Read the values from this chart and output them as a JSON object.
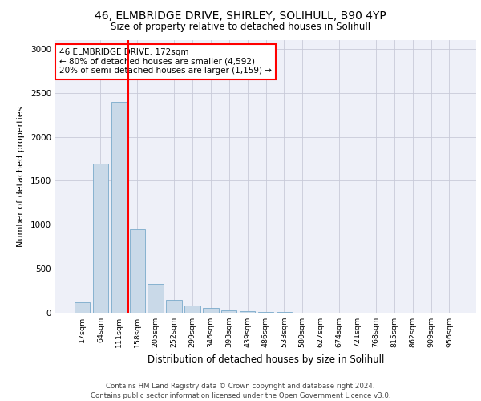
{
  "title_line1": "46, ELMBRIDGE DRIVE, SHIRLEY, SOLIHULL, B90 4YP",
  "title_line2": "Size of property relative to detached houses in Solihull",
  "xlabel": "Distribution of detached houses by size in Solihull",
  "ylabel": "Number of detached properties",
  "footer_line1": "Contains HM Land Registry data © Crown copyright and database right 2024.",
  "footer_line2": "Contains public sector information licensed under the Open Government Licence v3.0.",
  "categories": [
    "17sqm",
    "64sqm",
    "111sqm",
    "158sqm",
    "205sqm",
    "252sqm",
    "299sqm",
    "346sqm",
    "393sqm",
    "439sqm",
    "486sqm",
    "533sqm",
    "580sqm",
    "627sqm",
    "674sqm",
    "721sqm",
    "768sqm",
    "815sqm",
    "862sqm",
    "909sqm",
    "956sqm"
  ],
  "values": [
    120,
    1700,
    2400,
    950,
    330,
    145,
    85,
    55,
    30,
    20,
    8,
    5,
    3,
    2,
    1,
    1,
    0,
    0,
    0,
    0,
    0
  ],
  "bar_color": "#c9d9e8",
  "bar_edge_color": "#7aaacb",
  "red_line_x": 2.5,
  "annotation_text": "46 ELMBRIDGE DRIVE: 172sqm\n← 80% of detached houses are smaller (4,592)\n20% of semi-detached houses are larger (1,159) →",
  "ylim": [
    0,
    3100
  ],
  "yticks": [
    0,
    500,
    1000,
    1500,
    2000,
    2500,
    3000
  ],
  "bg_color": "#eef0f8",
  "grid_color": "#c8cad8"
}
